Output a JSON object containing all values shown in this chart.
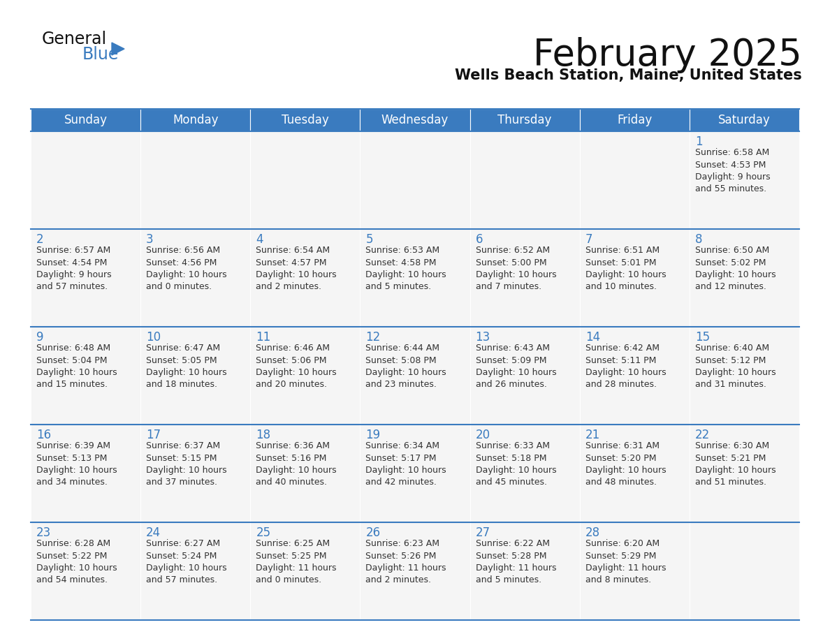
{
  "title": "February 2025",
  "subtitle": "Wells Beach Station, Maine, United States",
  "header_color": "#3a7bbf",
  "header_text_color": "#ffffff",
  "cell_bg_color": "#f5f5f5",
  "day_number_color": "#3a7bbf",
  "text_color": "#333333",
  "days_of_week": [
    "Sunday",
    "Monday",
    "Tuesday",
    "Wednesday",
    "Thursday",
    "Friday",
    "Saturday"
  ],
  "weeks": [
    [
      {
        "day": null,
        "info": null
      },
      {
        "day": null,
        "info": null
      },
      {
        "day": null,
        "info": null
      },
      {
        "day": null,
        "info": null
      },
      {
        "day": null,
        "info": null
      },
      {
        "day": null,
        "info": null
      },
      {
        "day": 1,
        "info": "Sunrise: 6:58 AM\nSunset: 4:53 PM\nDaylight: 9 hours\nand 55 minutes."
      }
    ],
    [
      {
        "day": 2,
        "info": "Sunrise: 6:57 AM\nSunset: 4:54 PM\nDaylight: 9 hours\nand 57 minutes."
      },
      {
        "day": 3,
        "info": "Sunrise: 6:56 AM\nSunset: 4:56 PM\nDaylight: 10 hours\nand 0 minutes."
      },
      {
        "day": 4,
        "info": "Sunrise: 6:54 AM\nSunset: 4:57 PM\nDaylight: 10 hours\nand 2 minutes."
      },
      {
        "day": 5,
        "info": "Sunrise: 6:53 AM\nSunset: 4:58 PM\nDaylight: 10 hours\nand 5 minutes."
      },
      {
        "day": 6,
        "info": "Sunrise: 6:52 AM\nSunset: 5:00 PM\nDaylight: 10 hours\nand 7 minutes."
      },
      {
        "day": 7,
        "info": "Sunrise: 6:51 AM\nSunset: 5:01 PM\nDaylight: 10 hours\nand 10 minutes."
      },
      {
        "day": 8,
        "info": "Sunrise: 6:50 AM\nSunset: 5:02 PM\nDaylight: 10 hours\nand 12 minutes."
      }
    ],
    [
      {
        "day": 9,
        "info": "Sunrise: 6:48 AM\nSunset: 5:04 PM\nDaylight: 10 hours\nand 15 minutes."
      },
      {
        "day": 10,
        "info": "Sunrise: 6:47 AM\nSunset: 5:05 PM\nDaylight: 10 hours\nand 18 minutes."
      },
      {
        "day": 11,
        "info": "Sunrise: 6:46 AM\nSunset: 5:06 PM\nDaylight: 10 hours\nand 20 minutes."
      },
      {
        "day": 12,
        "info": "Sunrise: 6:44 AM\nSunset: 5:08 PM\nDaylight: 10 hours\nand 23 minutes."
      },
      {
        "day": 13,
        "info": "Sunrise: 6:43 AM\nSunset: 5:09 PM\nDaylight: 10 hours\nand 26 minutes."
      },
      {
        "day": 14,
        "info": "Sunrise: 6:42 AM\nSunset: 5:11 PM\nDaylight: 10 hours\nand 28 minutes."
      },
      {
        "day": 15,
        "info": "Sunrise: 6:40 AM\nSunset: 5:12 PM\nDaylight: 10 hours\nand 31 minutes."
      }
    ],
    [
      {
        "day": 16,
        "info": "Sunrise: 6:39 AM\nSunset: 5:13 PM\nDaylight: 10 hours\nand 34 minutes."
      },
      {
        "day": 17,
        "info": "Sunrise: 6:37 AM\nSunset: 5:15 PM\nDaylight: 10 hours\nand 37 minutes."
      },
      {
        "day": 18,
        "info": "Sunrise: 6:36 AM\nSunset: 5:16 PM\nDaylight: 10 hours\nand 40 minutes."
      },
      {
        "day": 19,
        "info": "Sunrise: 6:34 AM\nSunset: 5:17 PM\nDaylight: 10 hours\nand 42 minutes."
      },
      {
        "day": 20,
        "info": "Sunrise: 6:33 AM\nSunset: 5:18 PM\nDaylight: 10 hours\nand 45 minutes."
      },
      {
        "day": 21,
        "info": "Sunrise: 6:31 AM\nSunset: 5:20 PM\nDaylight: 10 hours\nand 48 minutes."
      },
      {
        "day": 22,
        "info": "Sunrise: 6:30 AM\nSunset: 5:21 PM\nDaylight: 10 hours\nand 51 minutes."
      }
    ],
    [
      {
        "day": 23,
        "info": "Sunrise: 6:28 AM\nSunset: 5:22 PM\nDaylight: 10 hours\nand 54 minutes."
      },
      {
        "day": 24,
        "info": "Sunrise: 6:27 AM\nSunset: 5:24 PM\nDaylight: 10 hours\nand 57 minutes."
      },
      {
        "day": 25,
        "info": "Sunrise: 6:25 AM\nSunset: 5:25 PM\nDaylight: 11 hours\nand 0 minutes."
      },
      {
        "day": 26,
        "info": "Sunrise: 6:23 AM\nSunset: 5:26 PM\nDaylight: 11 hours\nand 2 minutes."
      },
      {
        "day": 27,
        "info": "Sunrise: 6:22 AM\nSunset: 5:28 PM\nDaylight: 11 hours\nand 5 minutes."
      },
      {
        "day": 28,
        "info": "Sunrise: 6:20 AM\nSunset: 5:29 PM\nDaylight: 11 hours\nand 8 minutes."
      },
      {
        "day": null,
        "info": null
      }
    ]
  ],
  "logo_text_general": "General",
  "logo_text_blue": "Blue",
  "logo_color_general": "#111111",
  "logo_color_blue": "#3a7bbf",
  "logo_triangle_color": "#3a7bbf",
  "title_fontsize": 38,
  "subtitle_fontsize": 15,
  "header_fontsize": 12,
  "day_number_fontsize": 12,
  "cell_text_fontsize": 9
}
